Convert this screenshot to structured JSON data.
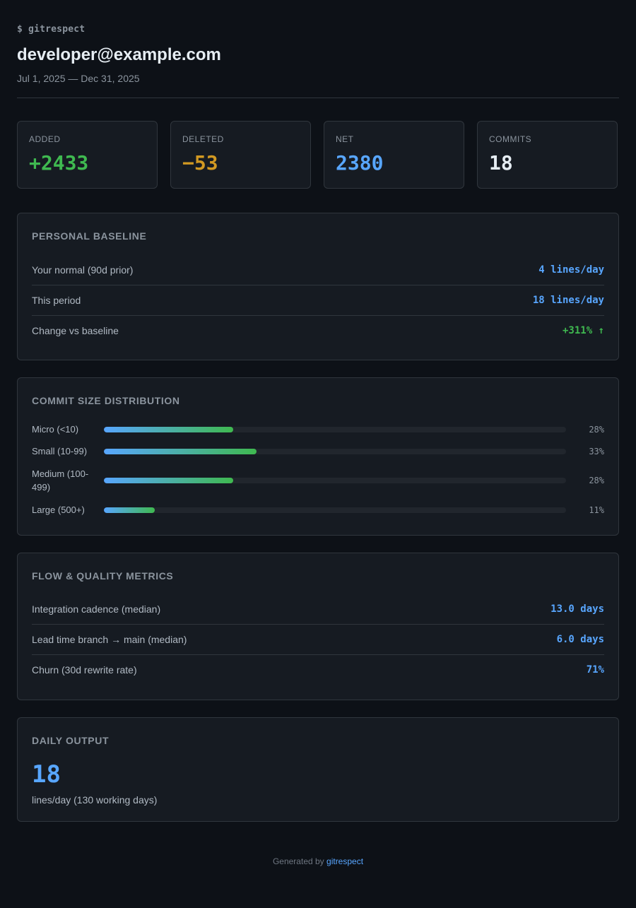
{
  "header": {
    "prompt": "$ gitrespect",
    "email": "developer@example.com",
    "date_range": "Jul 1, 2025 — Dec 31, 2025"
  },
  "stats": [
    {
      "label": "ADDED",
      "value": "+2433",
      "color": "#3fb950"
    },
    {
      "label": "DELETED",
      "value": "−53",
      "color": "#d29922"
    },
    {
      "label": "NET",
      "value": "2380",
      "color": "#58a6ff"
    },
    {
      "label": "COMMITS",
      "value": "18",
      "color": "#e6edf3"
    }
  ],
  "baseline": {
    "title": "PERSONAL BASELINE",
    "rows": [
      {
        "label": "Your normal (90d prior)",
        "value": "4 lines/day"
      },
      {
        "label": "This period",
        "value": "18 lines/day"
      },
      {
        "label": "Change vs baseline",
        "value": "+311% ↑"
      }
    ]
  },
  "distribution": {
    "title": "COMMIT SIZE DISTRIBUTION",
    "bars": [
      {
        "label": "Micro (<10)",
        "percent": 28,
        "percent_label": "28%"
      },
      {
        "label": "Small (10-99)",
        "percent": 33,
        "percent_label": "33%"
      },
      {
        "label": "Medium (100-499)",
        "percent": 28,
        "percent_label": "28%"
      },
      {
        "label": "Large (500+)",
        "percent": 11,
        "percent_label": "11%"
      }
    ]
  },
  "flow": {
    "title": "FLOW & QUALITY METRICS",
    "rows": [
      {
        "label": "Integration cadence (median)",
        "value": "13.0 days"
      },
      {
        "label": "Lead time branch → main (median)",
        "value": "6.0 days"
      },
      {
        "label": "Churn (30d rewrite rate)",
        "value": "71%"
      }
    ]
  },
  "daily": {
    "title": "DAILY OUTPUT",
    "value": "18",
    "caption": "lines/day (130 working days)"
  },
  "footer": {
    "prefix": "Generated by",
    "link": "gitrespect"
  },
  "colors": {
    "background": "#0d1117",
    "card": "#161b22",
    "accent_blue": "#58a6ff",
    "accent_green": "#3fb950",
    "accent_orange": "#d29922"
  }
}
